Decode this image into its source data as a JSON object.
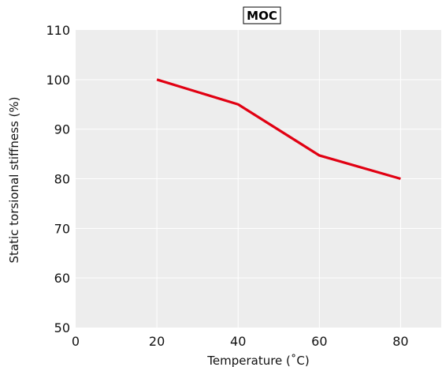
{
  "chart_data": {
    "type": "line",
    "title": "MOC",
    "xlabel": "Temperature (˚C)",
    "ylabel": "Static torsional stiffness (%)",
    "xlim": [
      0,
      90
    ],
    "ylim": [
      50,
      110
    ],
    "xticks": [
      0,
      20,
      40,
      60,
      80
    ],
    "yticks": [
      50,
      60,
      70,
      80,
      90,
      100,
      110
    ],
    "grid": true,
    "series": [
      {
        "x": [
          20,
          40,
          60,
          80
        ],
        "y": [
          100,
          95,
          84.7,
          80
        ],
        "color": "#e10012"
      }
    ],
    "colors": {
      "plot_background": "#ededed",
      "grid": "#ffffff",
      "line": "#e10012"
    }
  }
}
